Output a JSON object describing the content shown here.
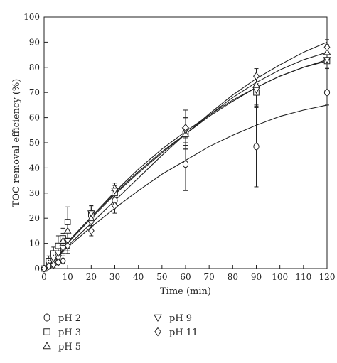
{
  "chart_data": {
    "type": "scatter",
    "xlabel": "Time (min)",
    "ylabel": "TOC removal efficiency (%)",
    "xlim": [
      0,
      120
    ],
    "ylim": [
      0,
      100
    ],
    "xticks": [
      0,
      10,
      20,
      30,
      40,
      50,
      60,
      70,
      80,
      90,
      100,
      110,
      120
    ],
    "yticks": [
      0,
      10,
      20,
      30,
      40,
      50,
      60,
      70,
      80,
      90,
      100
    ],
    "grid": false,
    "legend_position": "bottom",
    "series": [
      {
        "name": "pH 2",
        "marker": "circle",
        "x": [
          0,
          2,
          4,
          6,
          8,
          10,
          20,
          30,
          60,
          90,
          120
        ],
        "y": [
          0,
          1,
          3,
          5,
          8,
          10,
          19,
          27,
          41.5,
          48.5,
          70
        ],
        "err": [
          0,
          1,
          1.5,
          2,
          2,
          2,
          2,
          2,
          10.5,
          16,
          5
        ],
        "fit": [
          [
            0,
            0
          ],
          [
            10,
            8.5
          ],
          [
            20,
            16.5
          ],
          [
            30,
            24
          ],
          [
            40,
            31
          ],
          [
            50,
            37.5
          ],
          [
            60,
            43
          ],
          [
            70,
            48.5
          ],
          [
            80,
            53
          ],
          [
            90,
            57
          ],
          [
            100,
            60.5
          ],
          [
            110,
            63
          ],
          [
            120,
            65
          ]
        ]
      },
      {
        "name": "pH 3",
        "marker": "square",
        "x": [
          0,
          2,
          4,
          6,
          8,
          10,
          20,
          30,
          60,
          90,
          120
        ],
        "y": [
          0,
          3,
          6,
          9,
          12,
          18.5,
          21.5,
          30,
          53.5,
          70,
          82.5
        ],
        "err": [
          0,
          2,
          2.5,
          4,
          4,
          6,
          3,
          3,
          6,
          6,
          3
        ],
        "fit": [
          [
            0,
            0
          ],
          [
            10,
            10.5
          ],
          [
            20,
            20.5
          ],
          [
            30,
            30
          ],
          [
            40,
            38.5
          ],
          [
            50,
            46.5
          ],
          [
            60,
            53.5
          ],
          [
            70,
            60.5
          ],
          [
            80,
            66.5
          ],
          [
            90,
            72
          ],
          [
            100,
            76.5
          ],
          [
            110,
            80
          ],
          [
            120,
            82.5
          ]
        ]
      },
      {
        "name": "pH 5",
        "marker": "triangle-up",
        "x": [
          0,
          2,
          4,
          6,
          8,
          10,
          20,
          30,
          60,
          90,
          120
        ],
        "y": [
          0,
          2,
          4,
          6,
          11,
          15,
          20,
          32,
          53.5,
          73,
          86
        ],
        "err": [
          0,
          1,
          2,
          2,
          3,
          3,
          3,
          2,
          6,
          4,
          3
        ],
        "fit": [
          [
            0,
            0
          ],
          [
            10,
            10
          ],
          [
            20,
            20
          ],
          [
            30,
            29.5
          ],
          [
            40,
            38
          ],
          [
            50,
            46
          ],
          [
            60,
            53.5
          ],
          [
            70,
            61
          ],
          [
            80,
            68
          ],
          [
            90,
            74
          ],
          [
            100,
            79
          ],
          [
            110,
            83
          ],
          [
            120,
            86
          ]
        ]
      },
      {
        "name": "pH 9",
        "marker": "triangle-down",
        "x": [
          0,
          2,
          4,
          6,
          8,
          10,
          20,
          30,
          60,
          90,
          120
        ],
        "y": [
          0,
          2,
          4,
          6,
          8,
          11,
          22,
          31,
          55,
          71,
          83
        ],
        "err": [
          0,
          1,
          2,
          2,
          3,
          4,
          3,
          3,
          5,
          6,
          3
        ],
        "fit": [
          [
            0,
            0
          ],
          [
            10,
            10.5
          ],
          [
            20,
            20.5
          ],
          [
            30,
            30.5
          ],
          [
            40,
            39.5
          ],
          [
            50,
            47.5
          ],
          [
            60,
            54.5
          ],
          [
            70,
            61
          ],
          [
            80,
            67
          ],
          [
            90,
            72
          ],
          [
            100,
            76.5
          ],
          [
            110,
            80
          ],
          [
            120,
            83
          ]
        ]
      },
      {
        "name": "pH 11",
        "marker": "diamond",
        "x": [
          0,
          2,
          4,
          6,
          8,
          10,
          20,
          30,
          60,
          90,
          120
        ],
        "y": [
          0,
          1,
          1.5,
          2.5,
          3,
          9,
          15,
          25,
          56,
          76.5,
          88
        ],
        "err": [
          0,
          1,
          1,
          1,
          1,
          3,
          2,
          3,
          7,
          3,
          3
        ],
        "fit": [
          [
            0,
            0
          ],
          [
            10,
            9
          ],
          [
            20,
            18
          ],
          [
            30,
            27
          ],
          [
            40,
            36
          ],
          [
            50,
            45
          ],
          [
            60,
            53.5
          ],
          [
            70,
            61.5
          ],
          [
            80,
            69
          ],
          [
            90,
            75.5
          ],
          [
            100,
            81
          ],
          [
            110,
            86
          ],
          [
            120,
            90
          ]
        ]
      }
    ]
  }
}
